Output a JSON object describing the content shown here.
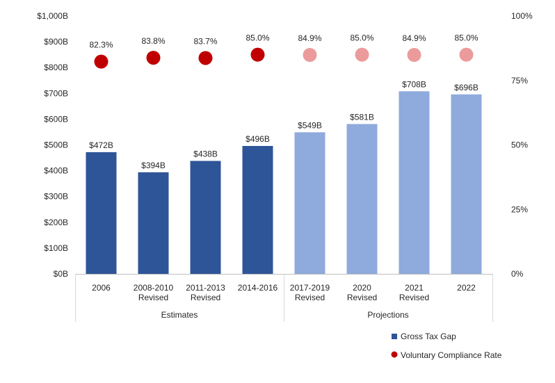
{
  "chart_data": {
    "type": "bar",
    "categories": [
      [
        "2006"
      ],
      [
        "2008-2010",
        "Revised"
      ],
      [
        "2011-2013",
        "Revised"
      ],
      [
        "2014-2016"
      ],
      [
        "2017-2019",
        "Revised"
      ],
      [
        "2020",
        "Revised"
      ],
      [
        "2021",
        "Revised"
      ],
      [
        "2022"
      ]
    ],
    "groups": [
      {
        "label": "Estimates",
        "from": 0,
        "to": 3
      },
      {
        "label": "Projections",
        "from": 4,
        "to": 7
      }
    ],
    "series": [
      {
        "name": "Gross Tax Gap",
        "axis": "left",
        "values": [
          472,
          394,
          438,
          496,
          549,
          581,
          708,
          696
        ],
        "labels": [
          "$472B",
          "$394B",
          "$438B",
          "$496B",
          "$549B",
          "$581B",
          "$708B",
          "$696B"
        ],
        "color_estimate": "#2E5597",
        "color_projection": "#8FAADC"
      },
      {
        "name": "Voluntary Compliance Rate",
        "axis": "right",
        "type": "scatter",
        "values": [
          82.3,
          83.8,
          83.7,
          85.0,
          84.9,
          85.0,
          84.9,
          85.0
        ],
        "labels": [
          "82.3%",
          "83.8%",
          "83.7%",
          "85.0%",
          "84.9%",
          "85.0%",
          "84.9%",
          "85.0%"
        ],
        "color_estimate": "#C00000",
        "color_projection": "#EB9B9B"
      }
    ],
    "y_left": {
      "ylim": [
        0,
        1000
      ],
      "ticks": [
        "$0B",
        "$100B",
        "$200B",
        "$300B",
        "$400B",
        "$500B",
        "$600B",
        "$700B",
        "$800B",
        "$900B",
        "$1,000B"
      ]
    },
    "y_right": {
      "ylim": [
        0,
        100
      ],
      "ticks": [
        "0%",
        "25%",
        "50%",
        "75%",
        "100%"
      ]
    },
    "legend_position": "bottom-right",
    "grid": false
  }
}
